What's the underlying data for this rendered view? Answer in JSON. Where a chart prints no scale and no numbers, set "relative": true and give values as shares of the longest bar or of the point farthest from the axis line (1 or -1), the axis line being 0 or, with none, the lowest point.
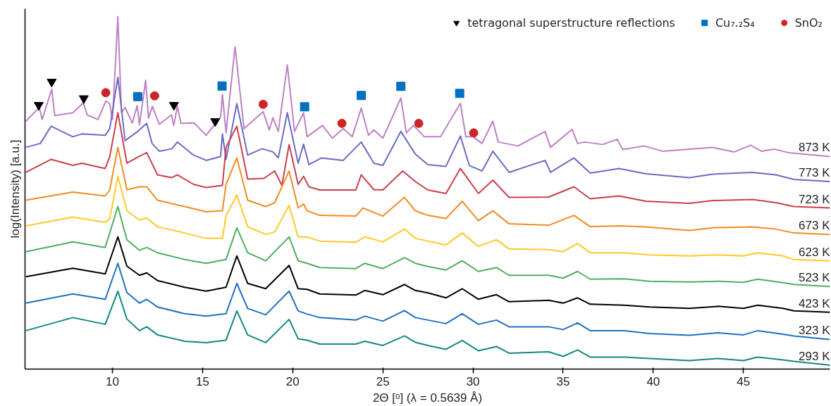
{
  "chart_data": {
    "type": "line",
    "xlabel": "2Θ [ᵒ] (λ = 0.5639 Å)",
    "ylabel": "log(Intensity) [a.u.]",
    "relative": true,
    "xlim": [
      5.15,
      49.8
    ],
    "xticks": [
      10,
      15,
      20,
      25,
      30,
      35,
      40,
      45
    ],
    "tick_labels": "x",
    "grid": false,
    "legend": "top right",
    "x": [
      5.2,
      7.8,
      9.6,
      10.3,
      10.8,
      11.5,
      11.9,
      12.5,
      14,
      15.2,
      16.3,
      16.9,
      17.5,
      18.5,
      19.8,
      20.3,
      20.8,
      21.5,
      23.5,
      24,
      25,
      26.2,
      26.8,
      27.5,
      28.5,
      29.4,
      30.3,
      31.3,
      32,
      34.2,
      35,
      35.8,
      36.5,
      38.4,
      39.8,
      42,
      43.6,
      45,
      45.8,
      47.2,
      47.8,
      49.8
    ],
    "series": [
      {
        "name": "873 K",
        "color": "#bf80c4",
        "x": [
          5.2,
          5.94,
          6.1,
          6.63,
          6.8,
          7.8,
          8.38,
          8.6,
          9.2,
          9.63,
          9.85,
          10.0,
          10.3,
          10.5,
          10.7,
          11.1,
          11.37,
          11.5,
          11.84,
          12.0,
          12.22,
          12.6,
          13.27,
          13.4,
          13.6,
          13.8,
          14.53,
          15.2,
          16.0,
          16.1,
          16.3,
          16.8,
          17.3,
          18.36,
          18.7,
          18.9,
          19.2,
          19.7,
          20.1,
          20.6,
          20.8,
          21.65,
          22.2,
          22.8,
          23.3,
          23.8,
          24.2,
          24.5,
          25.0,
          26.0,
          26.3,
          26.7,
          27.3,
          28.2,
          29.3,
          29.6,
          30.0,
          30.5,
          31.1,
          31.4,
          32.5,
          34.0,
          34.3,
          35.5,
          35.8,
          36.2,
          37.2,
          38.0,
          38.3,
          39.5,
          40.5,
          43.25,
          44.5,
          45.4,
          46.0,
          46.7,
          47.5,
          49.8
        ],
        "values": [
          0.703,
          0.742,
          0.708,
          0.794,
          0.719,
          0.727,
          0.755,
          0.721,
          0.708,
          0.76,
          0.753,
          0.708,
          1.0,
          0.727,
          0.742,
          0.698,
          0.747,
          0.693,
          0.819,
          0.712,
          0.745,
          0.694,
          0.721,
          0.691,
          0.745,
          0.697,
          0.698,
          0.663,
          0.715,
          0.779,
          0.67,
          0.914,
          0.682,
          0.73,
          0.678,
          0.713,
          0.674,
          0.863,
          0.674,
          0.727,
          0.659,
          0.691,
          0.655,
          0.682,
          0.659,
          0.74,
          0.663,
          0.678,
          0.655,
          0.769,
          0.67,
          0.691,
          0.659,
          0.659,
          0.754,
          0.659,
          0.659,
          0.64,
          0.703,
          0.644,
          0.633,
          0.674,
          0.629,
          0.68,
          0.64,
          0.644,
          0.637,
          0.652,
          0.623,
          0.633,
          0.618,
          0.629,
          0.616,
          0.635,
          0.618,
          0.624,
          0.614,
          0.603
        ]
      },
      {
        "name": "773 K",
        "color": "#6b6bc2",
        "x": [
          5.2,
          6.0,
          6.6,
          7.8,
          8.3,
          9.6,
          9.85,
          10.3,
          10.7,
          11.4,
          11.9,
          12.2,
          12.6,
          13.3,
          13.6,
          14.5,
          15.2,
          16.0,
          16.1,
          16.3,
          16.9,
          17.5,
          18.3,
          18.9,
          19.2,
          19.7,
          20.3,
          20.6,
          20.9,
          21.6,
          22.8,
          23.8,
          24.5,
          25,
          26.0,
          26.8,
          27.5,
          28.5,
          29.3,
          29.8,
          30.5,
          31.1,
          32,
          34.0,
          34.3,
          35.6,
          36.5,
          38.1,
          39.6,
          42,
          43.3,
          45.5,
          46.8,
          47.8,
          49.8
        ],
        "values": [
          0.629,
          0.64,
          0.689,
          0.659,
          0.667,
          0.663,
          0.682,
          0.828,
          0.648,
          0.674,
          0.697,
          0.64,
          0.618,
          0.625,
          0.644,
          0.607,
          0.592,
          0.603,
          0.667,
          0.595,
          0.753,
          0.607,
          0.625,
          0.616,
          0.599,
          0.727,
          0.584,
          0.638,
          0.58,
          0.599,
          0.592,
          0.644,
          0.584,
          0.578,
          0.674,
          0.61,
          0.58,
          0.575,
          0.661,
          0.577,
          0.562,
          0.618,
          0.558,
          0.592,
          0.558,
          0.599,
          0.556,
          0.569,
          0.554,
          0.543,
          0.553,
          0.558,
          0.551,
          0.538,
          0.532
        ]
      },
      {
        "name": "723 K",
        "color": "#cc3e4c",
        "x": [
          5.2,
          6.6,
          7.8,
          8.3,
          9.6,
          9.85,
          10.3,
          10.8,
          11.4,
          11.9,
          12.5,
          13.3,
          13.6,
          14.5,
          15.2,
          16.1,
          16.3,
          16.9,
          17.5,
          18.4,
          19.0,
          19.4,
          19.8,
          20.3,
          20.6,
          20.9,
          21.5,
          23.5,
          23.8,
          24.5,
          25,
          26.1,
          26.8,
          27.5,
          28.5,
          29.3,
          30.3,
          31.1,
          32,
          34.2,
          35.6,
          36.5,
          38.1,
          39.6,
          42,
          43.3,
          45.5,
          46.8,
          47.8,
          49.8
        ],
        "values": [
          0.558,
          0.595,
          0.578,
          0.584,
          0.569,
          0.603,
          0.727,
          0.584,
          0.601,
          0.614,
          0.551,
          0.543,
          0.551,
          0.524,
          0.515,
          0.521,
          0.629,
          0.689,
          0.539,
          0.541,
          0.562,
          0.521,
          0.637,
          0.524,
          0.547,
          0.517,
          0.508,
          0.508,
          0.551,
          0.509,
          0.508,
          0.562,
          0.532,
          0.508,
          0.498,
          0.569,
          0.498,
          0.536,
          0.487,
          0.488,
          0.517,
          0.483,
          0.491,
          0.476,
          0.47,
          0.478,
          0.481,
          0.472,
          0.461,
          0.457
        ]
      },
      {
        "name": "673 K",
        "color": "#f28b20",
        "x": [
          5.2,
          7.8,
          9.6,
          9.85,
          10.3,
          10.8,
          11.5,
          11.9,
          12.5,
          14,
          15.2,
          16.1,
          16.3,
          16.9,
          17.5,
          18.5,
          19.0,
          19.8,
          20.3,
          20.6,
          20.8,
          21.5,
          23.5,
          23.9,
          25,
          26.2,
          26.8,
          27.5,
          28.5,
          29.4,
          30.3,
          31.1,
          32,
          34.2,
          35.6,
          36.5,
          38.2,
          39.6,
          42,
          43.4,
          45.5,
          46.8,
          47.8,
          49.8
        ],
        "values": [
          0.479,
          0.502,
          0.491,
          0.509,
          0.629,
          0.509,
          0.517,
          0.517,
          0.479,
          0.461,
          0.446,
          0.449,
          0.524,
          0.599,
          0.479,
          0.461,
          0.472,
          0.562,
          0.457,
          0.468,
          0.449,
          0.436,
          0.434,
          0.457,
          0.434,
          0.487,
          0.449,
          0.436,
          0.427,
          0.476,
          0.421,
          0.449,
          0.412,
          0.408,
          0.436,
          0.404,
          0.406,
          0.403,
          0.393,
          0.401,
          0.403,
          0.397,
          0.386,
          0.382
        ]
      },
      {
        "name": "623 K",
        "color": "#ffc926",
        "x": [
          5.2,
          7.8,
          9.6,
          9.85,
          10.3,
          10.8,
          11.5,
          11.9,
          12.5,
          14,
          15.2,
          16.1,
          16.3,
          16.9,
          17.5,
          18.5,
          19.0,
          19.8,
          20.3,
          20.8,
          21.5,
          23.5,
          24,
          25,
          26.2,
          26.8,
          27.5,
          28.5,
          29.4,
          30.3,
          31.3,
          32,
          34.2,
          35,
          35.8,
          36.5,
          38.4,
          39.8,
          42,
          43.6,
          45,
          45.8,
          47.2,
          47.8,
          49.8
        ],
        "values": [
          0.406,
          0.431,
          0.416,
          0.427,
          0.547,
          0.449,
          0.423,
          0.428,
          0.404,
          0.386,
          0.371,
          0.371,
          0.434,
          0.494,
          0.404,
          0.382,
          0.389,
          0.464,
          0.375,
          0.375,
          0.363,
          0.36,
          0.375,
          0.361,
          0.397,
          0.371,
          0.363,
          0.352,
          0.386,
          0.348,
          0.367,
          0.341,
          0.339,
          0.333,
          0.356,
          0.33,
          0.33,
          0.324,
          0.321,
          0.324,
          0.321,
          0.33,
          0.321,
          0.311,
          0.307
        ]
      },
      {
        "name": "523 K",
        "color": "#4daf5e",
        "values": [
          0.333,
          0.361,
          0.345,
          0.461,
          0.367,
          0.337,
          0.345,
          0.33,
          0.311,
          0.3,
          0.311,
          0.401,
          0.33,
          0.307,
          0.375,
          0.307,
          0.3,
          0.288,
          0.285,
          0.3,
          0.285,
          0.316,
          0.3,
          0.291,
          0.281,
          0.307,
          0.277,
          0.288,
          0.266,
          0.266,
          0.258,
          0.277,
          0.255,
          0.256,
          0.249,
          0.247,
          0.249,
          0.246,
          0.255,
          0.245,
          0.24,
          0.234
        ]
      },
      {
        "name": "423 K",
        "color": "#000000",
        "values": [
          0.262,
          0.286,
          0.27,
          0.375,
          0.292,
          0.266,
          0.273,
          0.251,
          0.232,
          0.221,
          0.232,
          0.321,
          0.243,
          0.228,
          0.294,
          0.228,
          0.226,
          0.213,
          0.21,
          0.223,
          0.211,
          0.24,
          0.223,
          0.216,
          0.202,
          0.228,
          0.198,
          0.211,
          0.191,
          0.195,
          0.187,
          0.202,
          0.184,
          0.181,
          0.176,
          0.172,
          0.178,
          0.172,
          0.181,
          0.172,
          0.165,
          0.161
        ]
      },
      {
        "name": "323 K",
        "color": "#1f70c1",
        "values": [
          0.187,
          0.213,
          0.198,
          0.3,
          0.217,
          0.187,
          0.198,
          0.176,
          0.157,
          0.15,
          0.157,
          0.243,
          0.172,
          0.154,
          0.221,
          0.165,
          0.156,
          0.146,
          0.139,
          0.15,
          0.136,
          0.166,
          0.146,
          0.139,
          0.129,
          0.157,
          0.127,
          0.139,
          0.12,
          0.12,
          0.112,
          0.131,
          0.109,
          0.109,
          0.101,
          0.096,
          0.103,
          0.097,
          0.109,
          0.099,
          0.094,
          0.084
        ]
      },
      {
        "name": "293 K",
        "color": "#13877f",
        "values": [
          0.109,
          0.146,
          0.127,
          0.221,
          0.142,
          0.109,
          0.12,
          0.097,
          0.079,
          0.075,
          0.082,
          0.165,
          0.097,
          0.075,
          0.141,
          0.086,
          0.082,
          0.071,
          0.071,
          0.079,
          0.067,
          0.094,
          0.076,
          0.067,
          0.056,
          0.081,
          0.052,
          0.064,
          0.045,
          0.049,
          0.036,
          0.054,
          0.034,
          0.034,
          0.03,
          0.024,
          0.03,
          0.024,
          0.034,
          0.026,
          0.022,
          0.011
        ]
      },
      {
        "name": "tetragonal superstructure reflections",
        "type": "scatter",
        "marker": "triangle",
        "color": "#000000",
        "x": [
          5.91,
          6.63,
          8.41,
          13.41,
          15.7
        ],
        "values": [
          0.749,
          0.815,
          0.768,
          0.749,
          0.703
        ]
      },
      {
        "name": "Cu₇.₂S₄",
        "type": "scatter",
        "marker": "square",
        "color": "#0070c0",
        "x": [
          11.4,
          16.08,
          20.66,
          23.8,
          26.0,
          29.26
        ],
        "values": [
          0.773,
          0.803,
          0.744,
          0.776,
          0.802,
          0.782
        ]
      },
      {
        "name": "SnO₂",
        "type": "scatter",
        "marker": "circle",
        "color": "#cc2525",
        "x": [
          9.63,
          12.34,
          18.36,
          22.73,
          26.99,
          30.04
        ],
        "values": [
          0.784,
          0.775,
          0.751,
          0.697,
          0.697,
          0.67
        ]
      }
    ]
  }
}
